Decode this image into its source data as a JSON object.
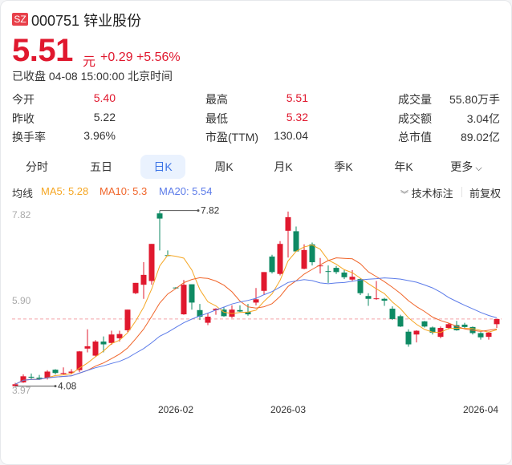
{
  "header": {
    "exchange": "SZ",
    "code": "000751",
    "name": "锌业股份",
    "price": "5.51",
    "unit": "元",
    "change": "+0.29",
    "change_pct": "+5.56%",
    "status": "已收盘 04-08 15:00:00 北京时间"
  },
  "stats": [
    [
      {
        "label": "今开",
        "value": "5.40",
        "red": true
      },
      {
        "label": "最高",
        "value": "5.51",
        "red": true
      },
      {
        "label": "成交量",
        "value": "55.80万手"
      }
    ],
    [
      {
        "label": "昨收",
        "value": "5.22"
      },
      {
        "label": "最低",
        "value": "5.32",
        "red": true
      },
      {
        "label": "成交额",
        "value": "3.04亿"
      }
    ],
    [
      {
        "label": "换手率",
        "value": "3.96%"
      },
      {
        "label": "市盈(TTM)",
        "value": "130.04"
      },
      {
        "label": "总市值",
        "value": "89.02亿"
      }
    ]
  ],
  "tabs": [
    {
      "label": "分时"
    },
    {
      "label": "五日"
    },
    {
      "label": "日K",
      "active": true
    },
    {
      "label": "周K"
    },
    {
      "label": "月K"
    },
    {
      "label": "季K"
    },
    {
      "label": "年K"
    },
    {
      "label": "更多"
    }
  ],
  "indicators": {
    "label": "均线",
    "ma5": "MA5: 5.28",
    "ma10": "MA10: 5.3",
    "ma20": "MA20: 5.54",
    "tech_label": "技术标注",
    "adjust": "前复权"
  },
  "colors": {
    "up": "#e0182e",
    "down": "#0e8a63",
    "ma5": "#f5a623",
    "ma10": "#f0652a",
    "ma20": "#5b7be9",
    "accent": "#3b73e6"
  },
  "chart_data": {
    "type": "candlestick",
    "y_ticks": [
      "7.82",
      "5.90",
      "3.97"
    ],
    "x_ticks": [
      {
        "label": "2026-02",
        "index": 20
      },
      {
        "label": "2026-03",
        "index": 34
      },
      {
        "label": "2026-04",
        "index": 58
      }
    ],
    "high_marker": "7.82",
    "low_marker": "4.08",
    "last_close": 5.51,
    "ohlc": [
      [
        4.08,
        4.15,
        4.08,
        4.12
      ],
      [
        4.16,
        4.33,
        4.15,
        4.29
      ],
      [
        4.28,
        4.35,
        4.23,
        4.26
      ],
      [
        4.26,
        4.32,
        4.21,
        4.23
      ],
      [
        4.25,
        4.42,
        4.22,
        4.39
      ],
      [
        4.43,
        4.44,
        4.33,
        4.36
      ],
      [
        4.34,
        4.48,
        4.33,
        4.36
      ],
      [
        4.36,
        4.44,
        4.33,
        4.39
      ],
      [
        4.42,
        4.83,
        4.38,
        4.82
      ],
      [
        4.88,
        5.29,
        4.8,
        4.93
      ],
      [
        4.73,
        5.06,
        4.71,
        5.03
      ],
      [
        5.03,
        5.14,
        4.8,
        4.97
      ],
      [
        5.0,
        5.26,
        4.96,
        5.18
      ],
      [
        5.1,
        5.26,
        5.03,
        5.19
      ],
      [
        5.27,
        5.71,
        5.23,
        5.71
      ],
      [
        6.06,
        6.28,
        6.04,
        6.28
      ],
      [
        6.24,
        6.72,
        5.94,
        6.45
      ],
      [
        6.32,
        7.11,
        6.24,
        7.11
      ],
      [
        7.76,
        7.82,
        6.97,
        7.65
      ],
      [
        6.87,
        6.97,
        6.85,
        6.86
      ],
      [
        6.18,
        6.19,
        6.16,
        6.17
      ],
      [
        5.61,
        6.34,
        5.6,
        6.24
      ],
      [
        6.25,
        6.25,
        5.71,
        5.86
      ],
      [
        5.7,
        5.83,
        5.49,
        5.56
      ],
      [
        5.43,
        5.63,
        5.38,
        5.56
      ],
      [
        5.7,
        5.74,
        5.6,
        5.73
      ],
      [
        5.71,
        5.77,
        5.56,
        5.57
      ],
      [
        5.56,
        5.8,
        5.53,
        5.71
      ],
      [
        5.7,
        5.8,
        5.66,
        5.67
      ],
      [
        5.66,
        5.83,
        5.58,
        5.61
      ],
      [
        5.86,
        6.17,
        5.8,
        5.93
      ],
      [
        6.11,
        6.51,
        6.03,
        6.51
      ],
      [
        6.84,
        6.88,
        6.48,
        6.51
      ],
      [
        6.47,
        7.17,
        6.44,
        7.11
      ],
      [
        7.39,
        7.8,
        6.82,
        7.68
      ],
      [
        7.38,
        7.48,
        6.94,
        6.95
      ],
      [
        6.58,
        7.1,
        6.57,
        6.98
      ],
      [
        7.1,
        7.14,
        6.65,
        6.72
      ],
      [
        6.64,
        6.81,
        6.48,
        6.65
      ],
      [
        6.53,
        6.65,
        6.28,
        6.52
      ],
      [
        6.6,
        6.64,
        6.47,
        6.51
      ],
      [
        6.5,
        6.55,
        6.36,
        6.4
      ],
      [
        6.35,
        6.55,
        6.31,
        6.41
      ],
      [
        6.36,
        6.37,
        6.02,
        6.06
      ],
      [
        6.0,
        6.06,
        5.79,
        5.94
      ],
      [
        5.94,
        6.32,
        5.92,
        5.95
      ],
      [
        5.94,
        5.96,
        5.79,
        5.9
      ],
      [
        5.73,
        5.78,
        5.49,
        5.51
      ],
      [
        5.57,
        5.6,
        5.34,
        5.35
      ],
      [
        5.24,
        5.29,
        4.92,
        4.97
      ],
      [
        5.18,
        5.27,
        5.01,
        5.26
      ],
      [
        5.46,
        5.47,
        5.33,
        5.35
      ],
      [
        5.33,
        5.35,
        5.18,
        5.22
      ],
      [
        5.13,
        5.35,
        5.1,
        5.32
      ],
      [
        5.32,
        5.43,
        5.29,
        5.4
      ],
      [
        5.38,
        5.47,
        5.26,
        5.27
      ],
      [
        5.39,
        5.43,
        5.3,
        5.34
      ],
      [
        5.34,
        5.35,
        5.18,
        5.21
      ],
      [
        5.21,
        5.23,
        5.07,
        5.12
      ],
      [
        5.13,
        5.24,
        5.07,
        5.22
      ],
      [
        5.4,
        5.51,
        5.32,
        5.51
      ]
    ],
    "moving_averages": [
      5,
      10,
      20
    ]
  }
}
